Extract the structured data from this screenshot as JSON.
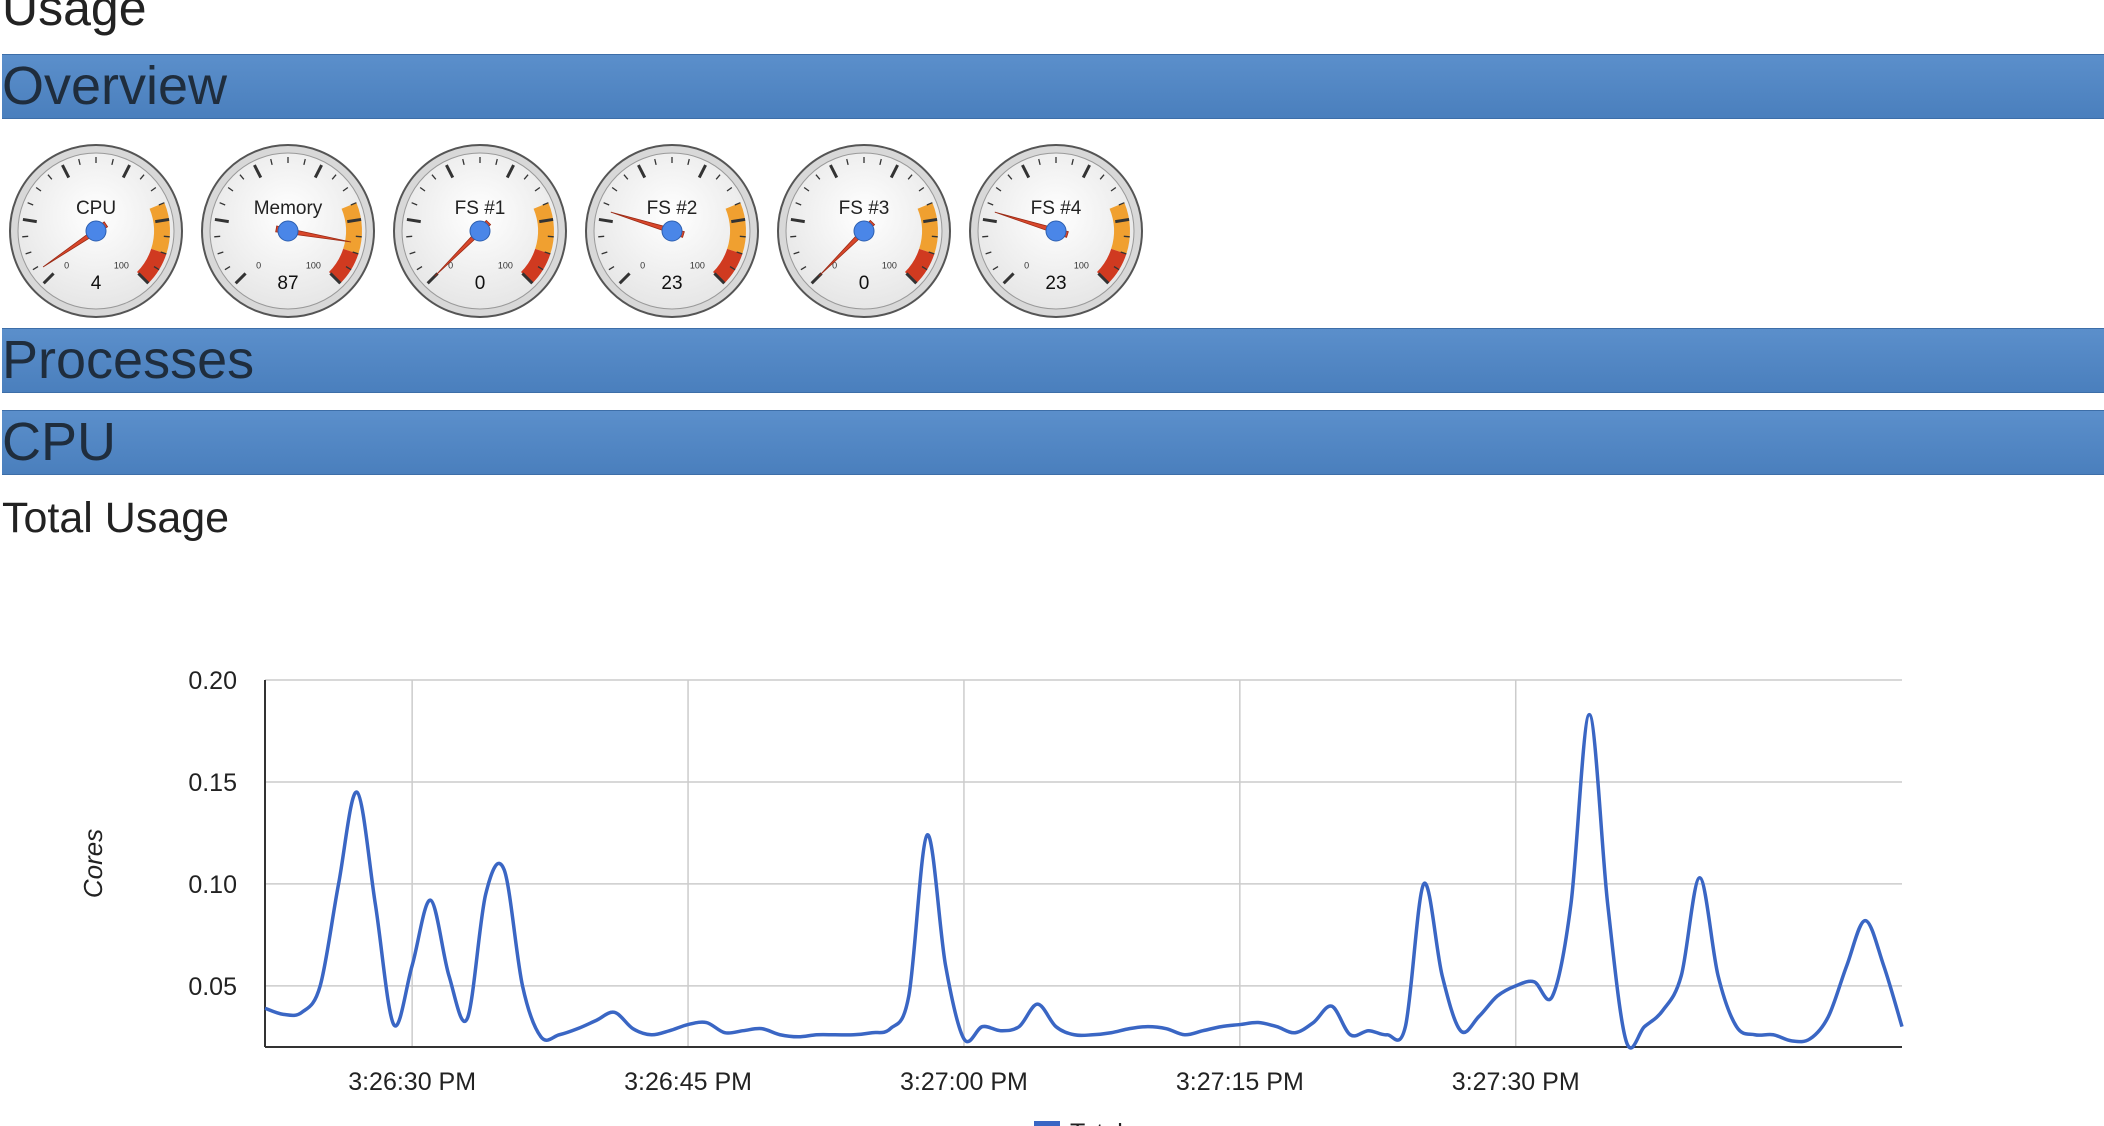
{
  "page": {
    "title": "Usage"
  },
  "sections": {
    "overview": "Overview",
    "processes": "Processes",
    "cpu": "CPU"
  },
  "gauges": [
    {
      "label": "CPU",
      "value": 4,
      "min": "0",
      "max": "100"
    },
    {
      "label": "Memory",
      "value": 87,
      "min": "0",
      "max": "100"
    },
    {
      "label": "FS #1",
      "value": 0,
      "min": "0",
      "max": "100"
    },
    {
      "label": "FS #2",
      "value": 23,
      "min": "0",
      "max": "100"
    },
    {
      "label": "FS #3",
      "value": 0,
      "min": "0",
      "max": "100"
    },
    {
      "label": "FS #4",
      "value": 23,
      "min": "0",
      "max": "100"
    }
  ],
  "cpu": {
    "subtitle": "Total Usage"
  },
  "colors": {
    "section_bar": "#4f85c5",
    "line": "#3a66c4",
    "needle": "#d9472b",
    "hub": "#4a86e8",
    "gauge_orange": "#f0a030",
    "gauge_red": "#d03a20"
  },
  "chart_data": {
    "type": "line",
    "ylabel": "Cores",
    "xlabel": "",
    "ylim": [
      0.02,
      0.2
    ],
    "yticks": [
      0.05,
      0.1,
      0.15,
      0.2
    ],
    "ytick_labels": [
      "0.05",
      "0.10",
      "0.15",
      "0.20"
    ],
    "xlim": [
      "3:26:22 PM",
      "3:27:51 PM"
    ],
    "xticks": [
      "3:26:30 PM",
      "3:26:45 PM",
      "3:27:00 PM",
      "3:27:15 PM",
      "3:27:30 PM"
    ],
    "grid": true,
    "legend_position": "bottom",
    "series": [
      {
        "name": "Total",
        "x": [
          "3:26:22 PM",
          "3:26:23 PM",
          "3:26:24 PM",
          "3:26:25 PM",
          "3:26:26 PM",
          "3:26:27 PM",
          "3:26:28 PM",
          "3:26:29 PM",
          "3:26:30 PM",
          "3:26:31 PM",
          "3:26:32 PM",
          "3:26:33 PM",
          "3:26:34 PM",
          "3:26:35 PM",
          "3:26:36 PM",
          "3:26:37 PM",
          "3:26:38 PM",
          "3:26:39 PM",
          "3:26:40 PM",
          "3:26:41 PM",
          "3:26:42 PM",
          "3:26:43 PM",
          "3:26:44 PM",
          "3:26:45 PM",
          "3:26:46 PM",
          "3:26:47 PM",
          "3:26:48 PM",
          "3:26:49 PM",
          "3:26:50 PM",
          "3:26:51 PM",
          "3:26:52 PM",
          "3:26:53 PM",
          "3:26:54 PM",
          "3:26:55 PM",
          "3:26:56 PM",
          "3:26:57 PM",
          "3:26:58 PM",
          "3:26:59 PM",
          "3:27:00 PM",
          "3:27:01 PM",
          "3:27:02 PM",
          "3:27:03 PM",
          "3:27:04 PM",
          "3:27:05 PM",
          "3:27:06 PM",
          "3:27:07 PM",
          "3:27:08 PM",
          "3:27:09 PM",
          "3:27:10 PM",
          "3:27:11 PM",
          "3:27:12 PM",
          "3:27:13 PM",
          "3:27:14 PM",
          "3:27:15 PM",
          "3:27:16 PM",
          "3:27:17 PM",
          "3:27:18 PM",
          "3:27:19 PM",
          "3:27:20 PM",
          "3:27:21 PM",
          "3:27:22 PM",
          "3:27:23 PM",
          "3:27:24 PM",
          "3:27:25 PM",
          "3:27:26 PM",
          "3:27:27 PM",
          "3:27:28 PM",
          "3:27:29 PM",
          "3:27:30 PM",
          "3:27:31 PM",
          "3:27:32 PM",
          "3:27:33 PM",
          "3:27:34 PM",
          "3:27:35 PM",
          "3:27:36 PM",
          "3:27:37 PM",
          "3:27:38 PM",
          "3:27:39 PM",
          "3:27:40 PM",
          "3:27:41 PM",
          "3:27:42 PM",
          "3:27:43 PM",
          "3:27:44 PM",
          "3:27:45 PM",
          "3:27:46 PM",
          "3:27:47 PM",
          "3:27:48 PM",
          "3:27:49 PM",
          "3:27:50 PM",
          "3:27:51 PM"
        ],
        "values": [
          0.039,
          0.036,
          0.037,
          0.05,
          0.1,
          0.145,
          0.09,
          0.031,
          0.06,
          0.092,
          0.055,
          0.034,
          0.095,
          0.107,
          0.05,
          0.025,
          0.026,
          0.029,
          0.033,
          0.037,
          0.029,
          0.026,
          0.028,
          0.031,
          0.032,
          0.027,
          0.028,
          0.029,
          0.026,
          0.025,
          0.026,
          0.026,
          0.026,
          0.027,
          0.029,
          0.045,
          0.124,
          0.06,
          0.024,
          0.03,
          0.028,
          0.03,
          0.041,
          0.03,
          0.026,
          0.026,
          0.027,
          0.029,
          0.03,
          0.029,
          0.026,
          0.028,
          0.03,
          0.031,
          0.032,
          0.03,
          0.027,
          0.032,
          0.04,
          0.026,
          0.028,
          0.026,
          0.03,
          0.1,
          0.055,
          0.028,
          0.035,
          0.045,
          0.05,
          0.052,
          0.045,
          0.09,
          0.183,
          0.09,
          0.023,
          0.03,
          0.038,
          0.055,
          0.103,
          0.055,
          0.03,
          0.026,
          0.026,
          0.023,
          0.024,
          0.035,
          0.06,
          0.082,
          0.06,
          0.03
        ]
      }
    ]
  }
}
